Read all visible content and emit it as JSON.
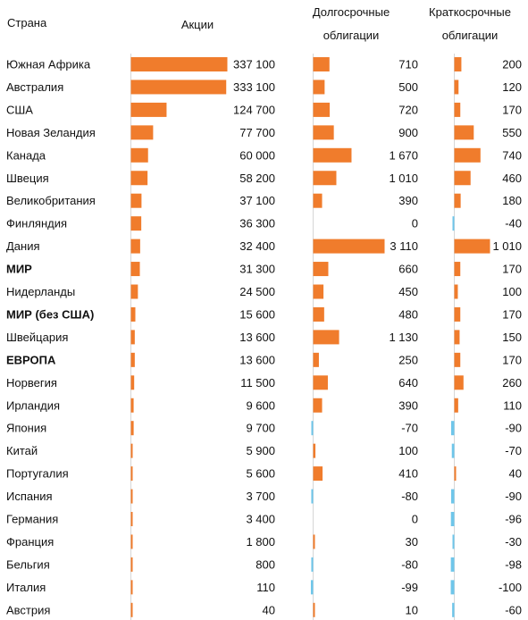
{
  "chart_data": {
    "type": "bar",
    "orientation": "horizontal",
    "headers": {
      "country": "Страна",
      "stocks": "Акции",
      "long_bonds": [
        "Долгосрочные",
        "облигации"
      ],
      "short_bonds": [
        "Краткосрочные",
        "облигации"
      ]
    },
    "bar_color_positive": "#f07c2c",
    "bar_color_negative": "#6ec6ea",
    "rows": [
      {
        "country": "Южная Африка",
        "bold": false,
        "stocks": 337100,
        "stocks_label": "337 100",
        "long": 710,
        "long_label": "710",
        "short": 200,
        "short_label": "200"
      },
      {
        "country": "Австралия",
        "bold": false,
        "stocks": 333100,
        "stocks_label": "333 100",
        "long": 500,
        "long_label": "500",
        "short": 120,
        "short_label": "120"
      },
      {
        "country": "США",
        "bold": false,
        "stocks": 124700,
        "stocks_label": "124 700",
        "long": 720,
        "long_label": "720",
        "short": 170,
        "short_label": "170"
      },
      {
        "country": "Новая Зеландия",
        "bold": false,
        "stocks": 77700,
        "stocks_label": "77 700",
        "long": 900,
        "long_label": "900",
        "short": 550,
        "short_label": "550"
      },
      {
        "country": "Канада",
        "bold": false,
        "stocks": 60000,
        "stocks_label": "60 000",
        "long": 1670,
        "long_label": "1 670",
        "short": 740,
        "short_label": "740"
      },
      {
        "country": "Швеция",
        "bold": false,
        "stocks": 58200,
        "stocks_label": "58 200",
        "long": 1010,
        "long_label": "1 010",
        "short": 460,
        "short_label": "460"
      },
      {
        "country": "Великобритания",
        "bold": false,
        "stocks": 37100,
        "stocks_label": "37 100",
        "long": 390,
        "long_label": "390",
        "short": 180,
        "short_label": "180"
      },
      {
        "country": "Финляндия",
        "bold": false,
        "stocks": 36300,
        "stocks_label": "36 300",
        "long": 0,
        "long_label": "0",
        "short": -40,
        "short_label": "-40"
      },
      {
        "country": "Дания",
        "bold": false,
        "stocks": 32400,
        "stocks_label": "32 400",
        "long": 3110,
        "long_label": "3 110",
        "short": 1010,
        "short_label": "1 010"
      },
      {
        "country": "МИР",
        "bold": true,
        "stocks": 31300,
        "stocks_label": "31 300",
        "long": 660,
        "long_label": "660",
        "short": 170,
        "short_label": "170"
      },
      {
        "country": "Нидерланды",
        "bold": false,
        "stocks": 24500,
        "stocks_label": "24 500",
        "long": 450,
        "long_label": "450",
        "short": 100,
        "short_label": "100"
      },
      {
        "country": "МИР (без США)",
        "bold": true,
        "stocks": 15600,
        "stocks_label": "15 600",
        "long": 480,
        "long_label": "480",
        "short": 170,
        "short_label": "170"
      },
      {
        "country": "Швейцария",
        "bold": false,
        "stocks": 13600,
        "stocks_label": "13 600",
        "long": 1130,
        "long_label": "1 130",
        "short": 150,
        "short_label": "150"
      },
      {
        "country": "ЕВРОПА",
        "bold": true,
        "stocks": 13600,
        "stocks_label": "13 600",
        "long": 250,
        "long_label": "250",
        "short": 170,
        "short_label": "170"
      },
      {
        "country": "Норвегия",
        "bold": false,
        "stocks": 11500,
        "stocks_label": "11 500",
        "long": 640,
        "long_label": "640",
        "short": 260,
        "short_label": "260"
      },
      {
        "country": "Ирландия",
        "bold": false,
        "stocks": 9600,
        "stocks_label": "9 600",
        "long": 390,
        "long_label": "390",
        "short": 110,
        "short_label": "110"
      },
      {
        "country": "Япония",
        "bold": false,
        "stocks": 9700,
        "stocks_label": "9 700",
        "long": -70,
        "long_label": "-70",
        "short": -90,
        "short_label": "-90"
      },
      {
        "country": "Китай",
        "bold": false,
        "stocks": 5900,
        "stocks_label": "5 900",
        "long": 100,
        "long_label": "100",
        "short": -70,
        "short_label": "-70"
      },
      {
        "country": "Португалия",
        "bold": false,
        "stocks": 5600,
        "stocks_label": "5 600",
        "long": 410,
        "long_label": "410",
        "short": 40,
        "short_label": "40"
      },
      {
        "country": "Испания",
        "bold": false,
        "stocks": 3700,
        "stocks_label": "3 700",
        "long": -80,
        "long_label": "-80",
        "short": -90,
        "short_label": "-90"
      },
      {
        "country": "Германия",
        "bold": false,
        "stocks": 3400,
        "stocks_label": "3 400",
        "long": 0,
        "long_label": "0",
        "short": -96,
        "short_label": "-96"
      },
      {
        "country": "Франция",
        "bold": false,
        "stocks": 1800,
        "stocks_label": "1 800",
        "long": 30,
        "long_label": "30",
        "short": -30,
        "short_label": "-30"
      },
      {
        "country": "Бельгия",
        "bold": false,
        "stocks": 800,
        "stocks_label": "800",
        "long": -80,
        "long_label": "-80",
        "short": -98,
        "short_label": "-98"
      },
      {
        "country": "Италия",
        "bold": false,
        "stocks": 110,
        "stocks_label": "110",
        "long": -99,
        "long_label": "-99",
        "short": -100,
        "short_label": "-100"
      },
      {
        "country": "Австрия",
        "bold": false,
        "stocks": 40,
        "stocks_label": "40",
        "long": 10,
        "long_label": "10",
        "short": -60,
        "short_label": "-60"
      }
    ]
  }
}
